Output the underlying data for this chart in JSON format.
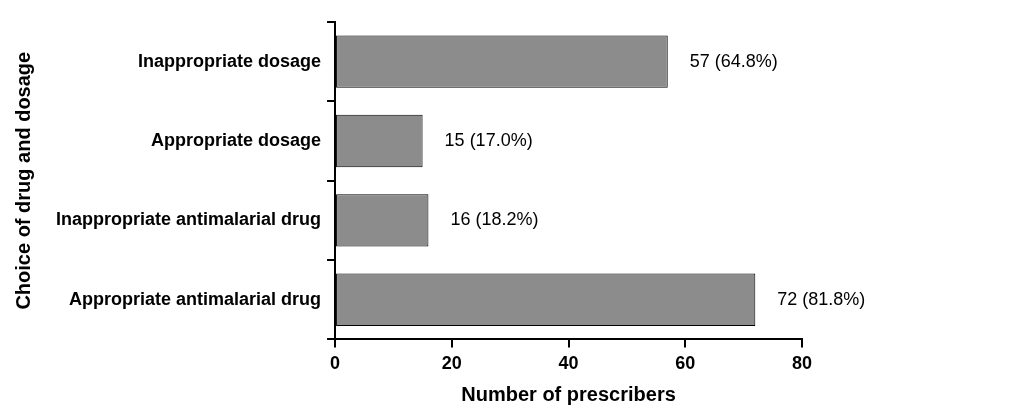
{
  "chart_data": {
    "type": "bar",
    "orientation": "horizontal",
    "xlabel": "Number of prescribers",
    "ylabel": "Choice of drug and dosage",
    "categories": [
      "Inappropriate dosage",
      "Appropriate dosage",
      "Inappropriate antimalarial drug",
      "Appropriate antimalarial drug"
    ],
    "values": [
      57,
      15,
      16,
      72
    ],
    "value_labels": [
      "57 (64.8%)",
      "15 (17.0%)",
      "16 (18.2%)",
      "72 (81.8%)"
    ],
    "color": "#8c8c8c",
    "xlim": [
      0,
      80
    ],
    "xticks": [
      0,
      20,
      40,
      60,
      80
    ],
    "legend": false
  }
}
